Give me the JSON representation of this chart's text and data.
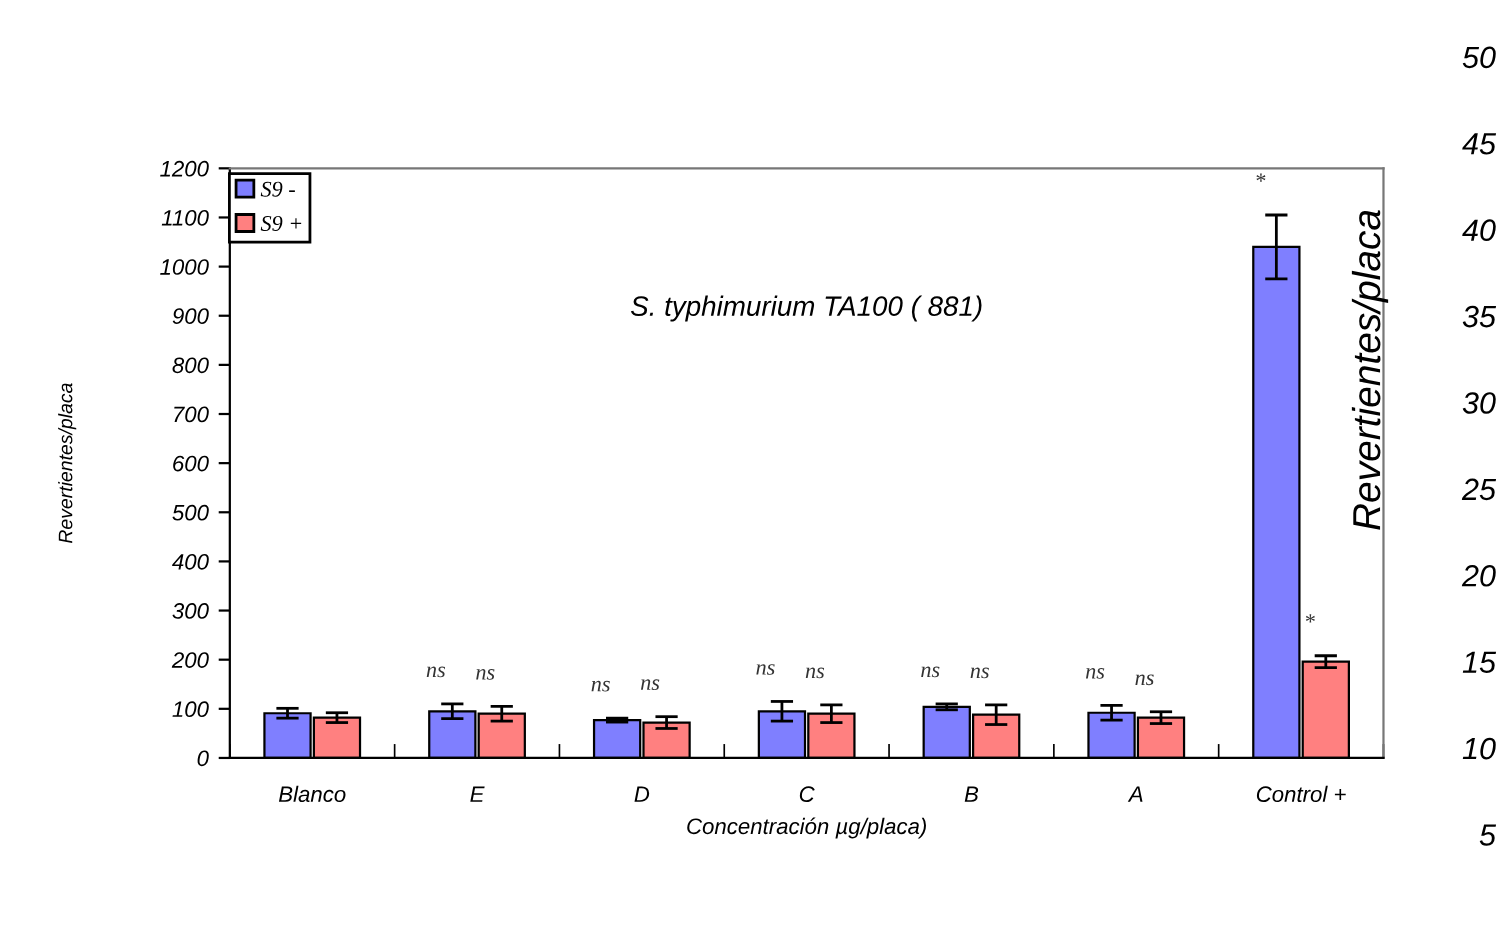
{
  "chart_data": {
    "type": "bar",
    "title": "S. typhimurium TA100 ( 881)",
    "xlabel": "Concentración µg/placa)",
    "ylabel": "Revertientes/placa",
    "categories": [
      "Blanco",
      "E",
      "D",
      "C",
      "B",
      "A",
      "Control +"
    ],
    "series": [
      {
        "name": "S9 -",
        "color": "#7f7fff",
        "values": [
          91,
          95,
          77,
          95,
          104,
          92,
          1040
        ],
        "errors": [
          10,
          15,
          4,
          20,
          6,
          15,
          65
        ],
        "value_labels": [
          null,
          "ns",
          "ns",
          "ns",
          "ns",
          "ns",
          "*"
        ]
      },
      {
        "name": "S9 +",
        "color": "#ff8080",
        "values": [
          82,
          90,
          72,
          90,
          88,
          82,
          196
        ],
        "errors": [
          10,
          15,
          12,
          18,
          20,
          12,
          12
        ],
        "value_labels": [
          null,
          "ns",
          "ns",
          "ns",
          "ns",
          "ns",
          "*"
        ]
      }
    ],
    "ylim": [
      0,
      1200
    ],
    "yticks": [
      0,
      100,
      200,
      300,
      400,
      500,
      600,
      700,
      800,
      900,
      1000,
      1100,
      1200
    ],
    "grid": false,
    "legend": "top left",
    "annotations": [
      "Revertientes/placa",
      "50",
      "45",
      "40",
      "35",
      "30",
      "25",
      "20",
      "15",
      "10",
      "5"
    ]
  }
}
